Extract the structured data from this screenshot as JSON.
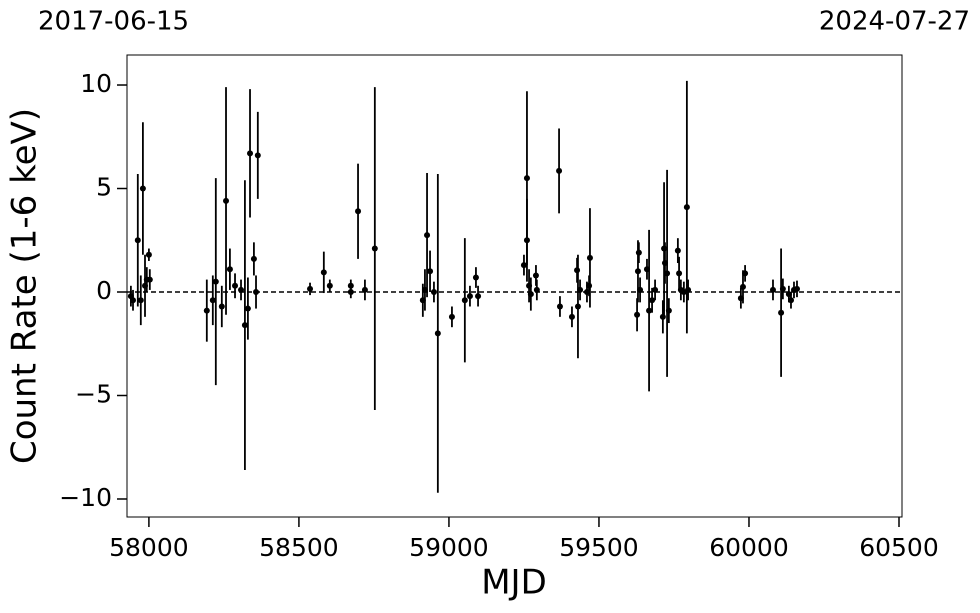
{
  "chart_data": {
    "type": "scatter",
    "annotations": [
      "2017-06-15",
      "2024-07-27"
    ],
    "xlabel": "MJD",
    "ylabel": "Count Rate (1-6 keV)",
    "color": "#000000",
    "hline": 0,
    "xlim": [
      57927,
      60510
    ],
    "ylim": [
      -10.87,
      11.45
    ],
    "xticks": [
      58000,
      58500,
      59000,
      59500,
      60000,
      60500
    ],
    "yticks": [
      {
        "value": -10,
        "label": "−10"
      },
      {
        "value": -5,
        "label": "−5"
      },
      0,
      5,
      10
    ],
    "x": [
      57940,
      57947,
      57963,
      57973,
      57980,
      57987,
      57993,
      58000,
      58003,
      58193,
      58213,
      58223,
      58243,
      58257,
      58270,
      58287,
      58307,
      58320,
      58330,
      58337,
      58350,
      58363,
      58357,
      58537,
      58583,
      58603,
      58673,
      58673,
      58697,
      58720,
      58753,
      58913,
      58920,
      58927,
      58937,
      58950,
      58963,
      59010,
      59053,
      59070,
      59090,
      59097,
      59250,
      59260,
      59260,
      59267,
      59273,
      59290,
      59293,
      59367,
      59370,
      59410,
      59427,
      59430,
      59437,
      59460,
      59470,
      59467,
      59627,
      59630,
      59633,
      59637,
      59660,
      59667,
      59677,
      59687,
      59713,
      59717,
      59720,
      59727,
      59733,
      59763,
      59767,
      59773,
      59783,
      59793,
      59797,
      59973,
      59980,
      59987,
      60080,
      60107,
      60113,
      60133,
      60140,
      60150,
      60160
    ],
    "values": [
      -0.2,
      -0.4,
      2.5,
      -0.4,
      5.0,
      0.3,
      0.6,
      1.8,
      0.6,
      -0.9,
      -0.4,
      0.5,
      -0.7,
      4.4,
      1.1,
      0.3,
      0.1,
      -1.6,
      -0.8,
      6.7,
      1.6,
      6.6,
      0.0,
      0.15,
      0.95,
      0.3,
      0.0,
      0.3,
      3.9,
      0.1,
      2.1,
      -0.4,
      0.1,
      2.75,
      1.0,
      0.0,
      -2.0,
      -1.2,
      -0.4,
      -0.2,
      0.7,
      -0.2,
      1.3,
      5.5,
      2.5,
      0.3,
      -0.1,
      0.8,
      0.1,
      5.85,
      -0.7,
      -1.2,
      1.05,
      -0.7,
      0.1,
      0.0,
      1.65,
      0.3,
      -1.1,
      1.0,
      1.9,
      0.1,
      1.1,
      -0.9,
      -0.4,
      0.1,
      -1.2,
      2.1,
      1.4,
      0.9,
      -0.9,
      2.0,
      0.9,
      0.1,
      0.0,
      4.1,
      0.1,
      -0.3,
      0.25,
      0.9,
      0.1,
      -1.0,
      0.15,
      -0.1,
      -0.4,
      0.1,
      0.15
    ],
    "errors": [
      0.5,
      0.5,
      3.2,
      1.2,
      3.2,
      1.5,
      0.6,
      0.3,
      0.5,
      1.5,
      1.2,
      5.0,
      1.0,
      5.5,
      1.0,
      0.6,
      0.5,
      7.0,
      1.5,
      3.1,
      0.8,
      2.1,
      0.8,
      0.3,
      1.0,
      0.3,
      0.3,
      0.3,
      2.3,
      0.5,
      7.8,
      0.8,
      1.0,
      3.0,
      1.0,
      0.5,
      7.7,
      0.5,
      3.0,
      0.5,
      0.5,
      0.5,
      0.5,
      4.2,
      2.0,
      0.8,
      0.8,
      0.5,
      0.5,
      2.05,
      0.5,
      0.5,
      0.6,
      2.5,
      0.5,
      0.5,
      2.4,
      0.5,
      0.8,
      1.5,
      0.5,
      0.6,
      0.5,
      3.9,
      0.6,
      0.5,
      0.8,
      3.2,
      1.0,
      5.0,
      0.6,
      0.6,
      0.8,
      0.5,
      0.5,
      6.1,
      0.5,
      0.5,
      0.8,
      0.4,
      0.5,
      3.1,
      0.5,
      0.4,
      0.4,
      0.4,
      0.4
    ]
  }
}
